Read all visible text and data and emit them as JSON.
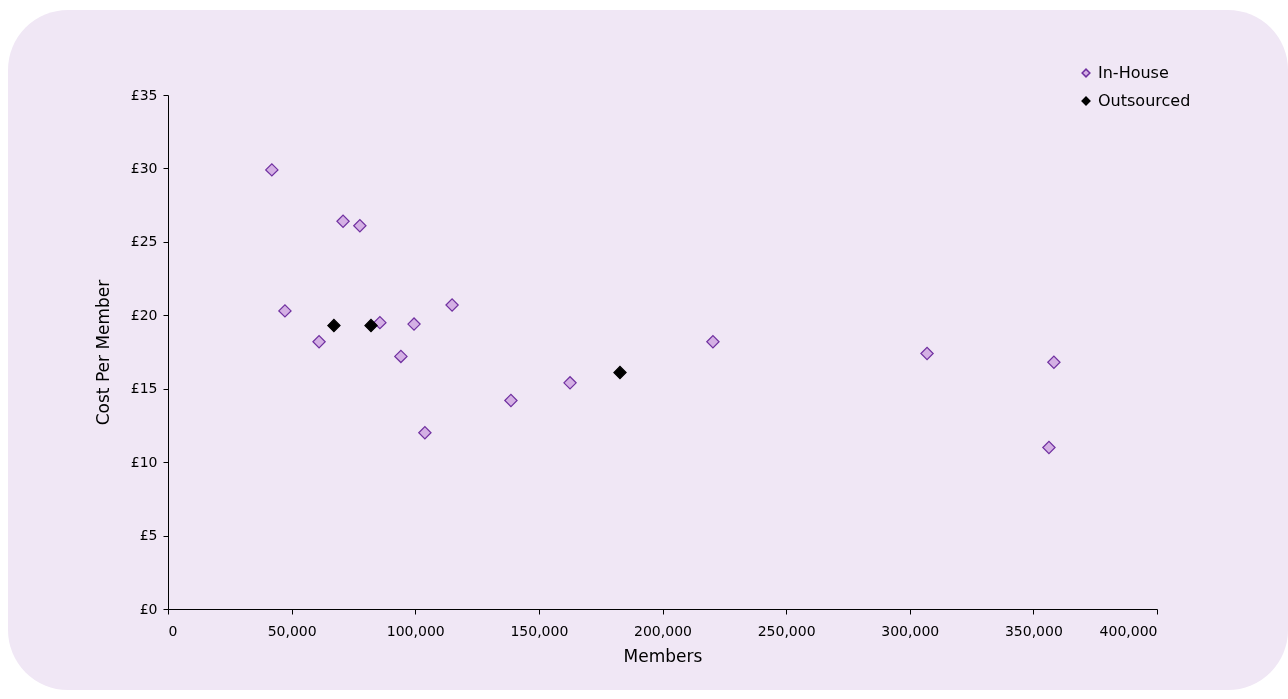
{
  "chart_data": {
    "type": "scatter",
    "xlabel": "Members",
    "ylabel": "Cost Per Member",
    "xlim": [
      0,
      400000
    ],
    "xticks": [
      0,
      {
        "value": 50000,
        "label": "50,000"
      },
      {
        "value": 100000,
        "label": "100,000"
      },
      {
        "value": 150000,
        "label": "150,000"
      },
      {
        "value": 200000,
        "label": "200,000"
      },
      {
        "value": 250000,
        "label": "250,000"
      },
      {
        "value": 300000,
        "label": "300,000"
      },
      {
        "value": 350000,
        "label": "350,000"
      },
      {
        "value": 400000,
        "label": "400,000"
      }
    ],
    "ylim": [
      0,
      35
    ],
    "yticks": [
      {
        "value": 0,
        "label": "£0"
      },
      {
        "value": 5,
        "label": "£5"
      },
      {
        "value": 10,
        "label": "£10"
      },
      {
        "value": 15,
        "label": "£15"
      },
      {
        "value": 20,
        "label": "£20"
      },
      {
        "value": 25,
        "label": "£25"
      },
      {
        "value": 30,
        "label": "£30"
      },
      {
        "value": 35,
        "label": "£35"
      }
    ],
    "grid": false,
    "legend": "top right",
    "marker": "diamond",
    "series": [
      {
        "name": "In-House",
        "color": "#d4b0e4",
        "x": [
          42000,
          47300,
          70800,
          77600,
          61100,
          85700,
          94200,
          99500,
          103900,
          114900,
          138700,
          162600,
          220400,
          307000,
          358300,
          356300
        ],
        "values": [
          29.9,
          20.3,
          26.4,
          26.1,
          18.2,
          19.5,
          17.2,
          19.4,
          12.0,
          20.7,
          14.2,
          15.4,
          18.2,
          17.4,
          16.8,
          11.0
        ]
      },
      {
        "name": "Outsourced",
        "color": "#000000",
        "x": [
          67100,
          82100,
          182800
        ],
        "values": [
          19.3,
          19.3,
          16.1
        ]
      }
    ]
  }
}
